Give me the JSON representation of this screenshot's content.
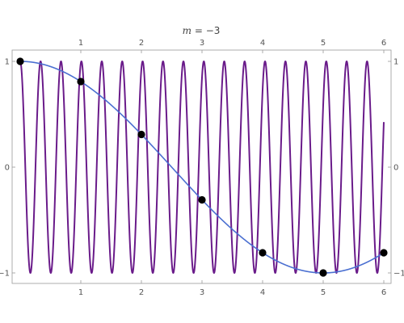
{
  "chart_data": {
    "type": "line",
    "title": {
      "variable": "m",
      "separator": " = ",
      "value": "−3"
    },
    "xlim": [
      0,
      6.1
    ],
    "ylim": [
      -1.1,
      1.1
    ],
    "x_ticks": [
      1,
      2,
      3,
      4,
      5,
      6
    ],
    "x_tick_labels": [
      "1",
      "2",
      "3",
      "4",
      "5",
      "6"
    ],
    "y_ticks": [
      -1,
      0,
      1
    ],
    "y_tick_labels": [
      "−1",
      "0",
      "1"
    ],
    "grid": false,
    "frame": true,
    "series": [
      {
        "kind": "function",
        "expression": "cos(3.0 + 2*pi*(x - 0.478)*2.97)",
        "color": "#6a1b8a",
        "x_range": [
          0,
          6
        ]
      },
      {
        "kind": "function",
        "expression": "cos(x * pi / 5)",
        "color": "#4a6fd1",
        "x_range": [
          0,
          6
        ]
      },
      {
        "kind": "points",
        "color": "#000000",
        "x": [
          0,
          1,
          2,
          3,
          4,
          5,
          6
        ],
        "y": [
          1,
          0.809,
          0.309,
          -0.309,
          -0.809,
          -1,
          -0.809
        ]
      }
    ]
  }
}
